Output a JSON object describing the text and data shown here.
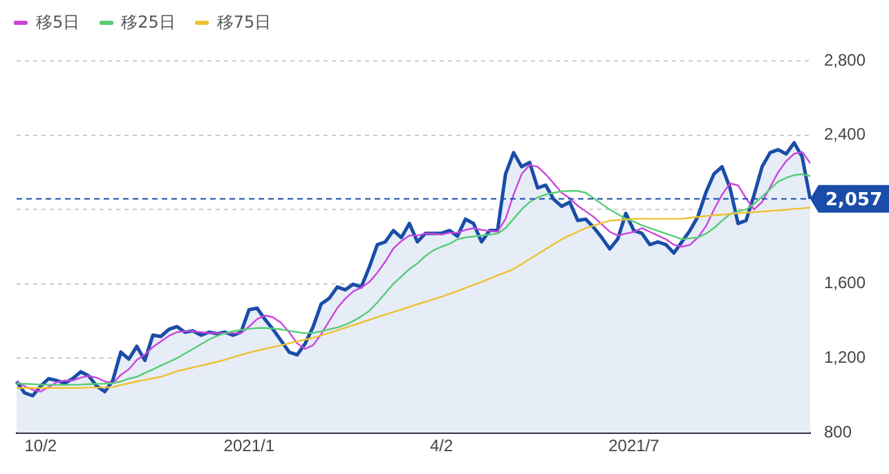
{
  "chart_data": {
    "type": "line",
    "legend": "top left",
    "grid": "y",
    "marker": "none",
    "categories": [
      null,
      null,
      null,
      "10/2",
      null,
      null,
      null,
      null,
      null,
      null,
      null,
      null,
      null,
      null,
      null,
      null,
      null,
      null,
      null,
      null,
      null,
      null,
      null,
      null,
      null,
      null,
      null,
      null,
      null,
      "2021/1",
      null,
      null,
      null,
      null,
      null,
      null,
      null,
      null,
      null,
      null,
      null,
      null,
      null,
      null,
      null,
      null,
      null,
      null,
      null,
      null,
      null,
      null,
      null,
      "4/2",
      null,
      null,
      null,
      null,
      null,
      null,
      null,
      null,
      null,
      null,
      null,
      null,
      null,
      null,
      null,
      null,
      null,
      null,
      null,
      null,
      null,
      null,
      null,
      "2021/7",
      null,
      null,
      null,
      null,
      null,
      null,
      null,
      null,
      null,
      null,
      null,
      null,
      null,
      null,
      null,
      null,
      null,
      null,
      null,
      null,
      null,
      null
    ],
    "ylim": [
      800,
      2800
    ],
    "yticks": [
      800,
      {
        "value": 1200,
        "label": "1,200"
      },
      {
        "value": 1600,
        "label": "1,600"
      },
      {
        "value": 2000,
        "label": null
      },
      {
        "value": 2400,
        "label": "2,400"
      },
      {
        "value": 2800,
        "label": "2,800"
      }
    ],
    "ref_lines": [
      {
        "axis": "y",
        "value": 2057,
        "label": "2,057",
        "color": "#1a4da8",
        "line_style": "dashed"
      }
    ],
    "series": [
      {
        "type": "area",
        "color": "#1a4da8",
        "values": [
          1075,
          1013,
          998,
          1050,
          1090,
          1080,
          1065,
          1090,
          1127,
          1105,
          1050,
          1020,
          1080,
          1233,
          1195,
          1264,
          1188,
          1324,
          1317,
          1355,
          1370,
          1340,
          1347,
          1324,
          1340,
          1332,
          1340,
          1324,
          1340,
          1461,
          1469,
          1408,
          1355,
          1294,
          1233,
          1218,
          1279,
          1370,
          1492,
          1522,
          1583,
          1568,
          1598,
          1583,
          1690,
          1811,
          1826,
          1887,
          1849,
          1925,
          1826,
          1872,
          1872,
          1872,
          1887,
          1857,
          1948,
          1925,
          1826,
          1887,
          1887,
          2192,
          2306,
          2230,
          2253,
          2116,
          2131,
          2055,
          2017,
          2040,
          1941,
          1948,
          1903,
          1849,
          1788,
          1842,
          1979,
          1887,
          1872,
          1811,
          1826,
          1811,
          1766,
          1826,
          1887,
          1963,
          2093,
          2192,
          2230,
          2116,
          1925,
          1941,
          2078,
          2230,
          2306,
          2322,
          2299,
          2359,
          2283,
          2057
        ]
      },
      {
        "name": "移5日",
        "color": "#cc44dd",
        "values": [
          1075,
          1050,
          1030,
          1020,
          1045,
          1070,
          1080,
          1080,
          1095,
          1105,
          1095,
          1075,
          1065,
          1110,
          1140,
          1190,
          1220,
          1260,
          1290,
          1320,
          1340,
          1345,
          1345,
          1340,
          1335,
          1335,
          1335,
          1335,
          1335,
          1370,
          1410,
          1430,
          1420,
          1390,
          1340,
          1280,
          1250,
          1270,
          1330,
          1400,
          1470,
          1520,
          1560,
          1580,
          1610,
          1660,
          1720,
          1790,
          1830,
          1860,
          1860,
          1870,
          1870,
          1865,
          1875,
          1875,
          1890,
          1900,
          1890,
          1885,
          1880,
          1950,
          2080,
          2190,
          2240,
          2230,
          2190,
          2140,
          2090,
          2060,
          2020,
          1990,
          1960,
          1920,
          1880,
          1860,
          1870,
          1880,
          1900,
          1880,
          1860,
          1840,
          1810,
          1800,
          1810,
          1850,
          1910,
          2000,
          2080,
          2140,
          2130,
          2060,
          2000,
          2040,
          2120,
          2200,
          2260,
          2300,
          2310,
          2250
        ]
      },
      {
        "name": "移25日",
        "color": "#55cc77",
        "values": [
          1063,
          1062,
          1060,
          1058,
          1057,
          1056,
          1056,
          1057,
          1058,
          1060,
          1062,
          1063,
          1065,
          1075,
          1090,
          1100,
          1120,
          1140,
          1160,
          1180,
          1200,
          1225,
          1250,
          1275,
          1300,
          1320,
          1335,
          1345,
          1352,
          1358,
          1362,
          1362,
          1360,
          1355,
          1348,
          1340,
          1335,
          1336,
          1345,
          1355,
          1365,
          1380,
          1400,
          1425,
          1454,
          1500,
          1550,
          1600,
          1640,
          1680,
          1710,
          1750,
          1780,
          1800,
          1815,
          1840,
          1850,
          1855,
          1860,
          1865,
          1870,
          1900,
          1950,
          2000,
          2040,
          2065,
          2080,
          2090,
          2098,
          2100,
          2100,
          2090,
          2060,
          2030,
          2000,
          1975,
          1950,
          1935,
          1915,
          1900,
          1885,
          1870,
          1855,
          1840,
          1845,
          1850,
          1870,
          1900,
          1940,
          1975,
          1990,
          2000,
          2030,
          2070,
          2110,
          2150,
          2170,
          2185,
          2190,
          2180
        ]
      },
      {
        "name": "移75日",
        "color": "#f0c030",
        "values": [
          1040,
          1040,
          1040,
          1040,
          1040,
          1040,
          1040,
          1040,
          1040,
          1042,
          1042,
          1043,
          1045,
          1055,
          1065,
          1075,
          1083,
          1092,
          1100,
          1115,
          1130,
          1140,
          1150,
          1160,
          1170,
          1180,
          1192,
          1205,
          1218,
          1230,
          1240,
          1250,
          1260,
          1270,
          1280,
          1290,
          1300,
          1310,
          1323,
          1337,
          1350,
          1364,
          1378,
          1392,
          1406,
          1420,
          1434,
          1448,
          1462,
          1476,
          1490,
          1503,
          1517,
          1530,
          1546,
          1562,
          1578,
          1594,
          1610,
          1628,
          1645,
          1662,
          1680,
          1707,
          1733,
          1760,
          1787,
          1813,
          1840,
          1860,
          1880,
          1900,
          1913,
          1927,
          1940,
          1943,
          1947,
          1950,
          1950,
          1950,
          1950,
          1950,
          1950,
          1950,
          1955,
          1960,
          1965,
          1969,
          1972,
          1976,
          1980,
          1983,
          1986,
          1989,
          1992,
          1995,
          1999,
          2003,
          2006,
          2010
        ]
      }
    ]
  }
}
